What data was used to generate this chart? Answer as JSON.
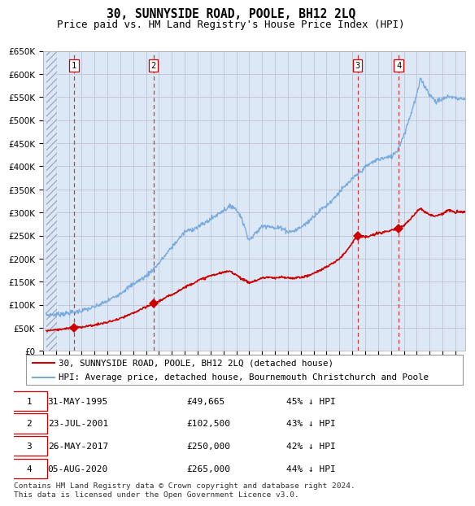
{
  "title": "30, SUNNYSIDE ROAD, POOLE, BH12 2LQ",
  "subtitle": "Price paid vs. HM Land Registry's House Price Index (HPI)",
  "ylim": [
    0,
    650000
  ],
  "yticks": [
    0,
    50000,
    100000,
    150000,
    200000,
    250000,
    300000,
    350000,
    400000,
    450000,
    500000,
    550000,
    600000,
    650000
  ],
  "xlim_start": 1993.25,
  "xlim_end": 2025.75,
  "hpi_color": "#7aabdc",
  "price_color": "#cc0000",
  "grid_color": "#bbbbcc",
  "bg_color": "#dce8f5",
  "sale_dates_year": [
    1995.42,
    2001.56,
    2017.4,
    2020.59
  ],
  "sale_prices": [
    49665,
    102500,
    250000,
    265000
  ],
  "sale_labels": [
    "1",
    "2",
    "3",
    "4"
  ],
  "legend_label_price": "30, SUNNYSIDE ROAD, POOLE, BH12 2LQ (detached house)",
  "legend_label_hpi": "HPI: Average price, detached house, Bournemouth Christchurch and Poole",
  "table_rows": [
    [
      "1",
      "31-MAY-1995",
      "£49,665",
      "45% ↓ HPI"
    ],
    [
      "2",
      "23-JUL-2001",
      "£102,500",
      "43% ↓ HPI"
    ],
    [
      "3",
      "26-MAY-2017",
      "£250,000",
      "42% ↓ HPI"
    ],
    [
      "4",
      "05-AUG-2020",
      "£265,000",
      "44% ↓ HPI"
    ]
  ],
  "footer": "Contains HM Land Registry data © Crown copyright and database right 2024.\nThis data is licensed under the Open Government Licence v3.0.",
  "title_fontsize": 10.5,
  "subtitle_fontsize": 9,
  "tick_fontsize": 7.5,
  "legend_fontsize": 7.8,
  "table_fontsize": 8,
  "footer_fontsize": 6.8,
  "hpi_anchors": [
    [
      1993.25,
      78000
    ],
    [
      1994.0,
      79000
    ],
    [
      1995.0,
      82000
    ],
    [
      1996.0,
      87000
    ],
    [
      1997.0,
      95000
    ],
    [
      1998.0,
      108000
    ],
    [
      1999.0,
      125000
    ],
    [
      2000.0,
      145000
    ],
    [
      2001.0,
      162000
    ],
    [
      2002.0,
      190000
    ],
    [
      2003.0,
      225000
    ],
    [
      2004.0,
      258000
    ],
    [
      2005.0,
      268000
    ],
    [
      2006.0,
      285000
    ],
    [
      2007.0,
      305000
    ],
    [
      2007.7,
      315000
    ],
    [
      2008.3,
      295000
    ],
    [
      2009.0,
      240000
    ],
    [
      2009.5,
      255000
    ],
    [
      2010.0,
      270000
    ],
    [
      2010.5,
      272000
    ],
    [
      2011.0,
      265000
    ],
    [
      2011.5,
      268000
    ],
    [
      2012.0,
      258000
    ],
    [
      2012.5,
      260000
    ],
    [
      2013.0,
      268000
    ],
    [
      2013.5,
      278000
    ],
    [
      2014.0,
      292000
    ],
    [
      2014.5,
      305000
    ],
    [
      2015.0,
      315000
    ],
    [
      2015.5,
      328000
    ],
    [
      2016.0,
      345000
    ],
    [
      2016.5,
      358000
    ],
    [
      2017.0,
      372000
    ],
    [
      2017.5,
      385000
    ],
    [
      2018.0,
      398000
    ],
    [
      2018.5,
      408000
    ],
    [
      2019.0,
      415000
    ],
    [
      2019.5,
      418000
    ],
    [
      2020.0,
      420000
    ],
    [
      2020.5,
      435000
    ],
    [
      2021.0,
      468000
    ],
    [
      2021.5,
      510000
    ],
    [
      2022.0,
      555000
    ],
    [
      2022.3,
      590000
    ],
    [
      2022.6,
      575000
    ],
    [
      2023.0,
      555000
    ],
    [
      2023.5,
      540000
    ],
    [
      2024.0,
      545000
    ],
    [
      2024.5,
      552000
    ],
    [
      2025.0,
      548000
    ],
    [
      2025.75,
      545000
    ]
  ],
  "price_anchors": [
    [
      1993.25,
      44000
    ],
    [
      1994.0,
      46000
    ],
    [
      1995.0,
      49000
    ],
    [
      1995.42,
      49665
    ],
    [
      1996.0,
      52000
    ],
    [
      1997.0,
      56000
    ],
    [
      1998.0,
      62000
    ],
    [
      1999.0,
      70000
    ],
    [
      2000.0,
      82000
    ],
    [
      2001.0,
      95000
    ],
    [
      2001.56,
      102500
    ],
    [
      2002.0,
      108000
    ],
    [
      2003.0,
      122000
    ],
    [
      2004.0,
      138000
    ],
    [
      2005.0,
      152000
    ],
    [
      2006.0,
      163000
    ],
    [
      2007.0,
      170000
    ],
    [
      2007.5,
      173000
    ],
    [
      2008.0,
      165000
    ],
    [
      2008.5,
      155000
    ],
    [
      2009.0,
      148000
    ],
    [
      2009.5,
      152000
    ],
    [
      2010.0,
      158000
    ],
    [
      2010.5,
      160000
    ],
    [
      2011.0,
      157000
    ],
    [
      2011.5,
      160000
    ],
    [
      2012.0,
      158000
    ],
    [
      2012.5,
      158000
    ],
    [
      2013.0,
      160000
    ],
    [
      2013.5,
      162000
    ],
    [
      2014.0,
      168000
    ],
    [
      2014.5,
      175000
    ],
    [
      2015.0,
      182000
    ],
    [
      2015.5,
      190000
    ],
    [
      2016.0,
      200000
    ],
    [
      2016.5,
      215000
    ],
    [
      2017.0,
      235000
    ],
    [
      2017.4,
      250000
    ],
    [
      2017.8,
      248000
    ],
    [
      2018.0,
      246000
    ],
    [
      2018.5,
      250000
    ],
    [
      2019.0,
      255000
    ],
    [
      2019.5,
      258000
    ],
    [
      2020.0,
      260000
    ],
    [
      2020.59,
      265000
    ],
    [
      2021.0,
      272000
    ],
    [
      2021.5,
      285000
    ],
    [
      2022.0,
      302000
    ],
    [
      2022.3,
      310000
    ],
    [
      2022.6,
      302000
    ],
    [
      2023.0,
      295000
    ],
    [
      2023.5,
      292000
    ],
    [
      2024.0,
      298000
    ],
    [
      2024.5,
      305000
    ],
    [
      2025.0,
      300000
    ],
    [
      2025.75,
      302000
    ]
  ]
}
